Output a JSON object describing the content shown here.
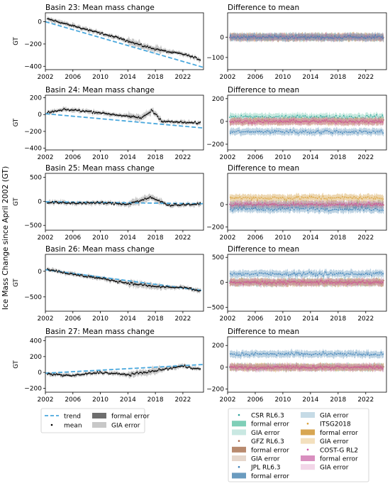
{
  "figure": {
    "ylabel": "Ice Mass Change since April 2002 (GT)"
  },
  "chart_data": [
    {
      "type": "line",
      "panel": "left",
      "row": 0,
      "title": "Basin 23: Mean mass change",
      "ylabel": "GT",
      "x_ticks": [
        2002,
        2006,
        2010,
        2014,
        2018,
        2022
      ],
      "y_ticks": [
        0,
        -200,
        -400
      ],
      "ylim": [
        -430,
        80
      ],
      "series": [
        {
          "name": "trend",
          "x": [
            2002,
            2025
          ],
          "y": [
            0,
            -410
          ]
        },
        {
          "name": "mean",
          "x": [
            2002,
            2005,
            2008,
            2011,
            2014,
            2016,
            2018,
            2020,
            2022,
            2024.5
          ],
          "y": [
            30,
            -20,
            -70,
            -120,
            -170,
            -215,
            -245,
            -270,
            -290,
            -340
          ]
        }
      ]
    },
    {
      "type": "line",
      "panel": "right",
      "row": 0,
      "title": "Difference to mean",
      "x_ticks": [
        2002,
        2006,
        2010,
        2014,
        2018,
        2022
      ],
      "y_ticks": [
        0,
        -100
      ],
      "ylim": [
        -160,
        120
      ],
      "series": [
        {
          "name": "CSR RL6.3",
          "x": [
            2002,
            2024.5
          ],
          "y": [
            0,
            0
          ]
        },
        {
          "name": "GFZ RL6.3",
          "x": [
            2002,
            2024.5
          ],
          "y": [
            0,
            0
          ]
        },
        {
          "name": "JPL RL6.3",
          "x": [
            2002,
            2024.5
          ],
          "y": [
            0,
            0
          ]
        }
      ]
    },
    {
      "type": "line",
      "panel": "left",
      "row": 1,
      "title": "Basin 24: Mean mass change",
      "ylabel": "GT",
      "x_ticks": [
        2002,
        2006,
        2010,
        2014,
        2018,
        2022
      ],
      "y_ticks": [
        200,
        0,
        -200,
        -400
      ],
      "ylim": [
        -420,
        230
      ],
      "series": [
        {
          "name": "trend",
          "x": [
            2002,
            2025
          ],
          "y": [
            10,
            -160
          ]
        },
        {
          "name": "mean",
          "x": [
            2002,
            2005,
            2008,
            2011,
            2014,
            2016,
            2017.5,
            2019,
            2021,
            2024.5
          ],
          "y": [
            20,
            60,
            40,
            10,
            -20,
            -40,
            50,
            -80,
            -90,
            -100
          ]
        }
      ]
    },
    {
      "type": "line",
      "panel": "right",
      "row": 1,
      "title": "Difference to mean",
      "x_ticks": [
        2002,
        2006,
        2010,
        2014,
        2018,
        2022
      ],
      "y_ticks": [
        200,
        0,
        -200
      ],
      "ylim": [
        -250,
        230
      ],
      "series": [
        {
          "name": "CSR RL6.3",
          "x": [
            2002,
            2024.5
          ],
          "y": [
            40,
            40
          ]
        },
        {
          "name": "JPL RL6.3",
          "x": [
            2002,
            2024.5
          ],
          "y": [
            -90,
            -90
          ]
        }
      ]
    },
    {
      "type": "line",
      "panel": "left",
      "row": 2,
      "title": "Basin 25: Mean mass change",
      "ylabel": "GT",
      "x_ticks": [
        2002,
        2006,
        2010,
        2014,
        2018,
        2022
      ],
      "y_ticks": [
        500,
        0,
        -500
      ],
      "ylim": [
        -600,
        580
      ],
      "series": [
        {
          "name": "trend",
          "x": [
            2002,
            2025
          ],
          "y": [
            -10,
            -50
          ]
        },
        {
          "name": "mean",
          "x": [
            2002,
            2006,
            2010,
            2014,
            2017.3,
            2020,
            2024.5
          ],
          "y": [
            -20,
            -40,
            -30,
            -60,
            80,
            -80,
            -60
          ]
        }
      ]
    },
    {
      "type": "line",
      "panel": "right",
      "row": 2,
      "title": "Difference to mean",
      "x_ticks": [
        2002,
        2006,
        2010,
        2014,
        2018,
        2022
      ],
      "y_ticks": [
        0,
        -200
      ],
      "ylim": [
        -230,
        280
      ],
      "series": [
        {
          "name": "ITSG2018",
          "x": [
            2002,
            2024.5
          ],
          "y": [
            60,
            60
          ]
        },
        {
          "name": "JPL RL6.3",
          "x": [
            2002,
            2024.5
          ],
          "y": [
            -40,
            -40
          ]
        }
      ]
    },
    {
      "type": "line",
      "panel": "left",
      "row": 3,
      "title": "Basin 26: Mean mass change",
      "ylabel": "GT",
      "x_ticks": [
        2002,
        2006,
        2010,
        2014,
        2018,
        2022
      ],
      "y_ticks": [
        0,
        -500
      ],
      "ylim": [
        -780,
        330
      ],
      "series": [
        {
          "name": "trend",
          "x": [
            2002,
            2025
          ],
          "y": [
            30,
            -380
          ]
        },
        {
          "name": "mean",
          "x": [
            2002,
            2006,
            2010,
            2014,
            2018,
            2022,
            2024.5
          ],
          "y": [
            50,
            -60,
            -140,
            -230,
            -300,
            -320,
            -380
          ]
        }
      ]
    },
    {
      "type": "line",
      "panel": "right",
      "row": 3,
      "title": "Difference to mean",
      "x_ticks": [
        2002,
        2006,
        2010,
        2014,
        2018,
        2022
      ],
      "y_ticks": [
        500,
        0,
        -500
      ],
      "ylim": [
        -580,
        560
      ],
      "series": [
        {
          "name": "JPL RL6.3",
          "x": [
            2002,
            2024.5
          ],
          "y": [
            170,
            170
          ]
        },
        {
          "name": "GFZ RL6.3",
          "x": [
            2002,
            2024.5
          ],
          "y": [
            0,
            0
          ]
        }
      ]
    },
    {
      "type": "line",
      "panel": "left",
      "row": 4,
      "title": "Basin 27: Mean mass change",
      "ylabel": "GT",
      "x_ticks": [
        2002,
        2006,
        2010,
        2014,
        2018,
        2022
      ],
      "y_ticks": [
        400,
        200,
        0,
        -200
      ],
      "ylim": [
        -250,
        450
      ],
      "series": [
        {
          "name": "trend",
          "x": [
            2002,
            2025
          ],
          "y": [
            -10,
            100
          ]
        },
        {
          "name": "mean",
          "x": [
            2002,
            2006,
            2010,
            2014,
            2018,
            2022,
            2024.5
          ],
          "y": [
            -20,
            -40,
            0,
            -30,
            20,
            80,
            40
          ]
        }
      ]
    },
    {
      "type": "line",
      "panel": "right",
      "row": 4,
      "title": "Difference to mean",
      "x_ticks": [
        2002,
        2006,
        2010,
        2014,
        2018,
        2022
      ],
      "y_ticks": [
        200,
        0,
        -200
      ],
      "ylim": [
        -230,
        280
      ],
      "series": [
        {
          "name": "JPL RL6.3",
          "x": [
            2002,
            2024.5
          ],
          "y": [
            120,
            120
          ]
        },
        {
          "name": "CSR RL6.3",
          "x": [
            2002,
            2024.5
          ],
          "y": [
            0,
            0
          ]
        }
      ]
    }
  ],
  "legend_left": [
    {
      "label": "trend",
      "kind": "dash",
      "color": "#4aa8dd"
    },
    {
      "label": "formal error",
      "kind": "patch",
      "color": "#6e6e6e"
    },
    {
      "label": "mean",
      "kind": "dot",
      "color": "#000000"
    },
    {
      "label": "GIA error",
      "kind": "patch",
      "color": "#c8c8c8"
    }
  ],
  "legend_right": [
    {
      "label": "CSR RL6.3",
      "kind": "dot",
      "color": "#2aa198"
    },
    {
      "label": "GIA error",
      "kind": "patch",
      "color": "#c6dbe6"
    },
    {
      "label": "formal error",
      "kind": "patch",
      "color": "#7fcfb8"
    },
    {
      "label": "ITSG2018",
      "kind": "dot",
      "color": "#d9a13b"
    },
    {
      "label": "GIA error",
      "kind": "patch",
      "color": "#c9e8e2"
    },
    {
      "label": "formal error",
      "kind": "patch",
      "color": "#d8a652"
    },
    {
      "label": "GFZ RL6.3",
      "kind": "dot",
      "color": "#a8684a"
    },
    {
      "label": "GIA error",
      "kind": "patch",
      "color": "#f3e0bd"
    },
    {
      "label": "formal error",
      "kind": "patch",
      "color": "#b88a6e"
    },
    {
      "label": "COST-G RL2",
      "kind": "dot",
      "color": "#d04fa0"
    },
    {
      "label": "GIA error",
      "kind": "patch",
      "color": "#e6d7cc"
    },
    {
      "label": "formal error",
      "kind": "patch",
      "color": "#d98fbf"
    },
    {
      "label": "JPL RL6.3",
      "kind": "dot",
      "color": "#3b80b8"
    },
    {
      "label": "GIA error",
      "kind": "patch",
      "color": "#f2d6e8"
    },
    {
      "label": "formal error",
      "kind": "patch",
      "color": "#6a9bbf"
    }
  ]
}
